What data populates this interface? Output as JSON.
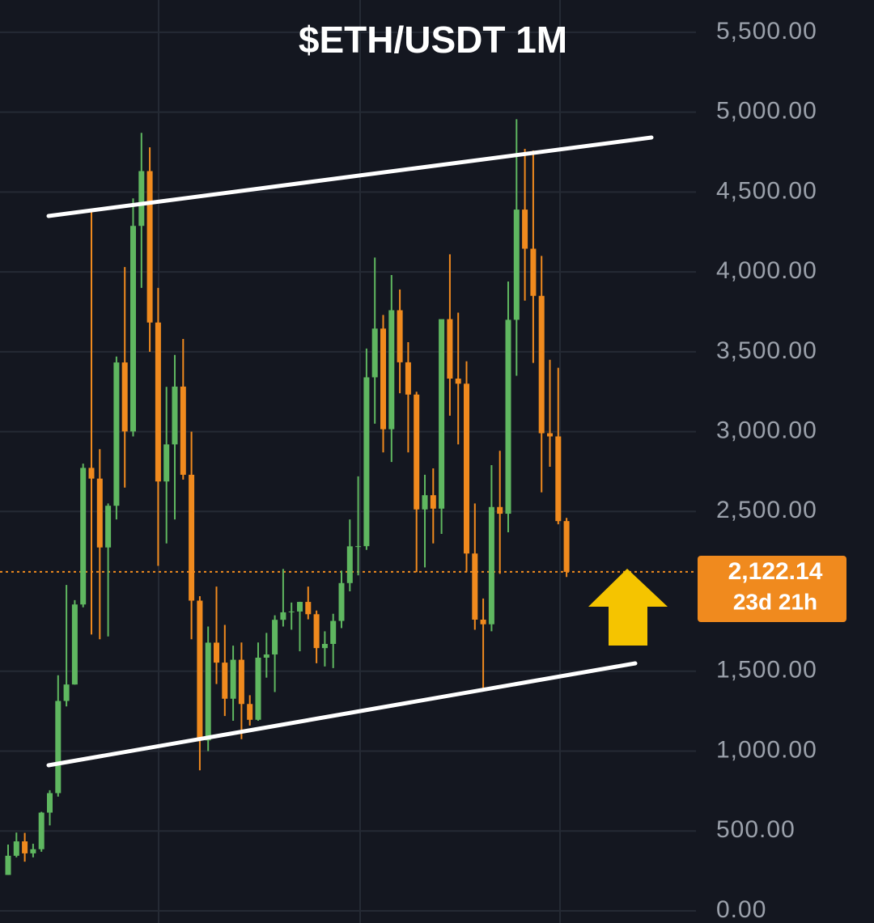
{
  "chart_data": {
    "type": "candlestick",
    "title": "$ETH/USDT 1M",
    "open": [
      225,
      345,
      435,
      360,
      386,
      615,
      737,
      1314,
      1417,
      1918,
      2773,
      2706,
      2275,
      2536,
      3433,
      3001,
      4288,
      4631,
      3683,
      2688,
      2920,
      3282,
      2730,
      1942,
      1067,
      1679,
      1554,
      1328,
      1572,
      1295,
      1196,
      1585,
      1605,
      1822,
      1869,
      1874,
      1934,
      1857,
      1645,
      1671,
      1815,
      2052,
      2282,
      2283,
      3340,
      3645,
      3015,
      3760,
      3434,
      3232,
      2513,
      2602,
      2518,
      3704,
      3332,
      3300,
      2237,
      1823,
      1794,
      2528,
      2486,
      3700,
      4390,
      4145,
      3850,
      2990,
      2970,
      2440
    ],
    "high": [
      415,
      490,
      488,
      420,
      620,
      755,
      1475,
      2040,
      1945,
      2800,
      4380,
      2890,
      2550,
      3470,
      4030,
      4460,
      4870,
      4780,
      3900,
      3280,
      3480,
      3580,
      3000,
      1970,
      1780,
      2030,
      1790,
      1660,
      1680,
      1350,
      1680,
      1740,
      1850,
      2140,
      1930,
      1935,
      2030,
      1880,
      1750,
      1860,
      2130,
      2450,
      2720,
      3520,
      4090,
      3730,
      3980,
      3890,
      3560,
      3250,
      2730,
      2770,
      3680,
      4110,
      3745,
      3440,
      2550,
      1955,
      2790,
      2880,
      3940,
      4956,
      4770,
      4760,
      4100,
      3450,
      3400,
      2460
    ],
    "low": [
      225,
      335,
      308,
      335,
      370,
      535,
      715,
      1280,
      1416,
      1900,
      1730,
      1700,
      1718,
      2450,
      2650,
      2970,
      3900,
      3500,
      2160,
      2300,
      2450,
      2700,
      1700,
      880,
      1000,
      1420,
      1220,
      1190,
      1075,
      1160,
      1190,
      1460,
      1370,
      1780,
      1760,
      1625,
      1825,
      1550,
      1530,
      1520,
      1770,
      2000,
      2100,
      2260,
      3050,
      2870,
      2810,
      3240,
      2870,
      2120,
      2150,
      2300,
      2360,
      3100,
      2920,
      2120,
      1760,
      1385,
      1750,
      2110,
      2370,
      3350,
      3820,
      3430,
      2620,
      2780,
      2420,
      2090
    ],
    "close": [
      345,
      435,
      360,
      386,
      615,
      737,
      1314,
      1417,
      1918,
      2773,
      2706,
      2275,
      2536,
      3433,
      3001,
      4288,
      4631,
      3683,
      2688,
      2920,
      3282,
      2730,
      1942,
      1067,
      1679,
      1554,
      1328,
      1572,
      1295,
      1196,
      1585,
      1605,
      1822,
      1869,
      1874,
      1934,
      1857,
      1645,
      1671,
      1815,
      2052,
      2282,
      2283,
      3340,
      3645,
      3015,
      3760,
      3434,
      3232,
      2513,
      2602,
      2518,
      3704,
      3332,
      3300,
      2237,
      1823,
      1794,
      2528,
      2486,
      3700,
      4390,
      4145,
      3850,
      2990,
      2970,
      2440,
      2122.14
    ],
    "up_color": "#5fb760",
    "down_color": "#f08a1e",
    "ylim": [
      -76,
      5702
    ],
    "yticks": [
      {
        "value": 0,
        "label": "0.00"
      },
      {
        "value": 500,
        "label": "500.00"
      },
      {
        "value": 1000,
        "label": "1,000.00"
      },
      {
        "value": 1500,
        "label": "1,500.00"
      },
      {
        "value": 2500,
        "label": "2,500.00"
      },
      {
        "value": 3000,
        "label": "3,000.00"
      },
      {
        "value": 3500,
        "label": "3,500.00"
      },
      {
        "value": 4000,
        "label": "4,000.00"
      },
      {
        "value": 4500,
        "label": "4,500.00"
      },
      {
        "value": 5000,
        "label": "5,000.00"
      },
      {
        "value": 5500,
        "label": "5,500.00"
      }
    ],
    "grid": true,
    "last_price": {
      "value": 2122.14,
      "label": "2,122.14"
    },
    "countdown": "23d 21h"
  }
}
